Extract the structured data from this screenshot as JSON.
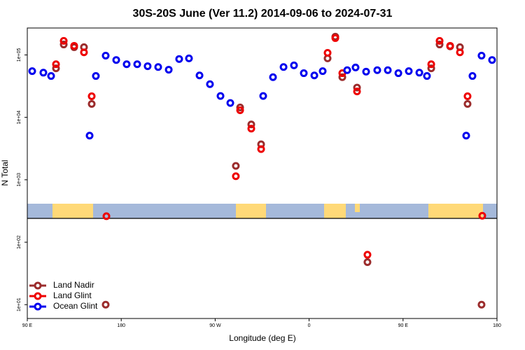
{
  "chart_data": {
    "type": "scatter",
    "title": "30S-20S June (Ver 11.2)   2014-09-06 to 2024-07-31",
    "x_label": "Longitude (deg E)",
    "y_label": "N Total",
    "log_y": true,
    "legend": "lower left",
    "xlim": [
      90,
      540
    ],
    "xticks": [
      {
        "value": 90,
        "label": "90 E"
      },
      180,
      {
        "value": 270,
        "label": "90 W"
      },
      {
        "value": 360,
        "label": "0"
      },
      {
        "value": 450,
        "label": "90 E"
      },
      {
        "value": 540,
        "label": "180"
      }
    ],
    "ylim": [
      6,
      270000
    ],
    "yticks": [
      {
        "value": 10,
        "label": "1e+01"
      },
      {
        "value": 100,
        "label": "1e+02"
      },
      {
        "value": 1000,
        "label": "1e+03"
      },
      {
        "value": 10000,
        "label": "1e+04"
      },
      {
        "value": 100000,
        "label": "1e+05"
      }
    ],
    "series": [
      {
        "name": "Land Nadir",
        "color": "#9b2c2c",
        "x": [
          117.5,
          124.9,
          134.9,
          144.3,
          151.7,
          165.1,
          289.8,
          293.9,
          304.6,
          314.0,
          377.7,
          385.1,
          391.8,
          405.9,
          415.9,
          477.0,
          485.0,
          495.1,
          504.5,
          511.8,
          525.2
        ],
        "values": [
          61000,
          147000,
          133000,
          133000,
          16400,
          10,
          1670,
          14400,
          7700,
          3700,
          88000,
          196000,
          44000,
          30000,
          48,
          61000,
          147000,
          137000,
          133000,
          16400,
          10
        ]
      },
      {
        "name": "Land Glint",
        "color": "#ee0000",
        "x": [
          117.5,
          124.9,
          134.9,
          144.3,
          151.7,
          165.8,
          289.8,
          293.9,
          304.6,
          314.0,
          377.7,
          385.1,
          391.8,
          405.9,
          415.9,
          477.0,
          485.0,
          495.1,
          504.5,
          511.8,
          525.9
        ],
        "values": [
          71000,
          168000,
          140000,
          110000,
          21800,
          261,
          1140,
          13000,
          6600,
          3100,
          108000,
          186000,
          51000,
          26000,
          63,
          71000,
          168000,
          140000,
          110000,
          21800,
          265
        ]
      },
      {
        "name": "Ocean Glint",
        "color": "#0000ee",
        "x": [
          94.7,
          105.4,
          112.8,
          149.7,
          155.7,
          165.1,
          175.2,
          185.2,
          195.3,
          205.3,
          215.4,
          225.5,
          235.5,
          244.9,
          255.0,
          265.0,
          275.1,
          284.5,
          316.0,
          325.4,
          335.5,
          345.5,
          354.9,
          365.0,
          373.0,
          396.5,
          404.5,
          414.6,
          425.3,
          435.4,
          445.5,
          455.5,
          465.6,
          472.9,
          510.5,
          516.5,
          525.2,
          535.3
        ],
        "values": [
          55000,
          52000,
          46000,
          5100,
          46000,
          97500,
          83000,
          71000,
          71000,
          66000,
          64000,
          58000,
          86000,
          88000,
          47000,
          34000,
          22000,
          17000,
          22000,
          44000,
          64000,
          68000,
          51000,
          47000,
          55000,
          57000,
          63000,
          54000,
          57000,
          57000,
          51000,
          55000,
          52000,
          46000,
          5100,
          46000,
          97500,
          83000
        ]
      }
    ]
  }
}
